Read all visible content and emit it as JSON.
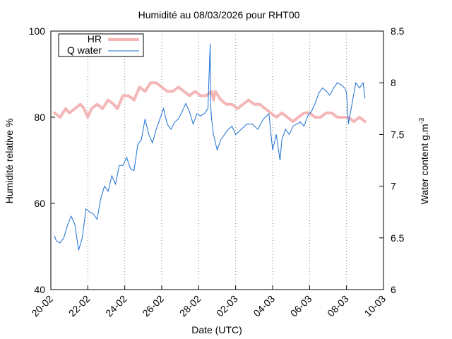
{
  "chart_data": {
    "type": "line",
    "title": "Humidité au 08/03/2026 pour RHT00",
    "xlabel": "Date (UTC)",
    "ylabel_left": "Humidité relative %",
    "ylabel_right": "Water content g.m",
    "ylabel_right_superscript": "-3",
    "x_axis": {
      "unit": "days since 20-02",
      "range": [
        0,
        17
      ],
      "ticks": [
        {
          "value": 0,
          "label": "20-02"
        },
        {
          "value": 2,
          "label": "22-02"
        },
        {
          "value": 4,
          "label": "24-02"
        },
        {
          "value": 6,
          "label": "26-02"
        },
        {
          "value": 8,
          "label": "28-02"
        },
        {
          "value": 10,
          "label": "02-03"
        },
        {
          "value": 12,
          "label": "04-03"
        },
        {
          "value": 14,
          "label": "06-03"
        },
        {
          "value": 16,
          "label": "08-03"
        },
        {
          "value": 18,
          "label": "10-03"
        }
      ]
    },
    "y_left": {
      "range": [
        40,
        100
      ],
      "ticks": [
        40,
        60,
        80,
        100
      ]
    },
    "y_right": {
      "range": [
        6,
        8.5
      ],
      "ticks": [
        "6",
        "6.5",
        "7",
        "7.5",
        "8",
        "8.5"
      ]
    },
    "grid": {
      "vertical_dotted": true,
      "horizontal": false
    },
    "legend": {
      "placement": "top-left",
      "entries": [
        "HR",
        "Q water"
      ]
    },
    "series": [
      {
        "name": "HR",
        "axis": "left",
        "color": "#f4b6b6",
        "x": [
          0.2,
          0.5,
          0.8,
          1.0,
          1.3,
          1.6,
          1.8,
          2.0,
          2.2,
          2.5,
          2.8,
          3.1,
          3.4,
          3.6,
          3.9,
          4.2,
          4.5,
          4.8,
          5.1,
          5.4,
          5.7,
          6.0,
          6.3,
          6.6,
          6.9,
          7.2,
          7.5,
          7.8,
          8.1,
          8.4,
          8.7,
          8.8,
          8.9,
          9.2,
          9.5,
          9.8,
          10.1,
          10.4,
          10.7,
          11.0,
          11.3,
          11.6,
          11.9,
          12.2,
          12.5,
          12.8,
          13.1,
          13.4,
          13.7,
          14.0,
          14.3,
          14.6,
          14.9,
          15.2,
          15.5,
          15.8,
          16.1,
          16.4,
          16.7,
          17.0
        ],
        "y": [
          81,
          80,
          82,
          81,
          82,
          83,
          82,
          80,
          82,
          83,
          82,
          84,
          83,
          82,
          85,
          85,
          84,
          87,
          86,
          88,
          88,
          87,
          86,
          86,
          87,
          86,
          85,
          86,
          85,
          85,
          86,
          84,
          86,
          84,
          83,
          83,
          82,
          83,
          84,
          83,
          83,
          82,
          81,
          80,
          81,
          80,
          79,
          80,
          81,
          81,
          80,
          80,
          81,
          81,
          80,
          80,
          80,
          79,
          80,
          79
        ]
      },
      {
        "name": "Q water",
        "axis": "right",
        "color": "#1a6fd6",
        "x": [
          0.2,
          0.3,
          0.5,
          0.7,
          0.9,
          1.1,
          1.3,
          1.5,
          1.7,
          1.9,
          2.1,
          2.3,
          2.5,
          2.7,
          2.9,
          3.1,
          3.3,
          3.5,
          3.7,
          3.9,
          4.1,
          4.3,
          4.5,
          4.7,
          4.9,
          5.1,
          5.3,
          5.5,
          5.7,
          5.9,
          6.1,
          6.3,
          6.5,
          6.7,
          6.9,
          7.1,
          7.3,
          7.5,
          7.7,
          7.9,
          8.1,
          8.3,
          8.5,
          8.62,
          8.64,
          8.66,
          8.7,
          8.8,
          9.0,
          9.2,
          9.4,
          9.6,
          9.8,
          10.0,
          10.3,
          10.6,
          10.9,
          11.2,
          11.5,
          11.8,
          12.0,
          12.2,
          12.4,
          12.5,
          12.7,
          12.9,
          13.1,
          13.3,
          13.5,
          13.7,
          13.9,
          14.1,
          14.3,
          14.5,
          14.7,
          14.9,
          15.1,
          15.3,
          15.5,
          15.7,
          15.9,
          16.0,
          16.1,
          16.3,
          16.5,
          16.7,
          16.9,
          17.0
        ],
        "y": [
          6.52,
          6.47,
          6.45,
          6.5,
          6.62,
          6.71,
          6.63,
          6.38,
          6.5,
          6.78,
          6.75,
          6.73,
          6.68,
          6.88,
          7.0,
          6.95,
          7.1,
          7.02,
          7.2,
          7.2,
          7.28,
          7.17,
          7.15,
          7.4,
          7.45,
          7.65,
          7.5,
          7.42,
          7.55,
          7.65,
          7.75,
          7.6,
          7.55,
          7.62,
          7.65,
          7.72,
          7.8,
          7.72,
          7.6,
          7.7,
          7.68,
          7.7,
          7.75,
          8.38,
          7.8,
          7.75,
          7.65,
          7.5,
          7.35,
          7.45,
          7.5,
          7.55,
          7.58,
          7.5,
          7.55,
          7.6,
          7.6,
          7.55,
          7.65,
          7.7,
          7.35,
          7.5,
          7.25,
          7.45,
          7.55,
          7.5,
          7.58,
          7.6,
          7.62,
          7.58,
          7.68,
          7.72,
          7.8,
          7.9,
          7.95,
          7.92,
          7.88,
          7.95,
          8.0,
          7.98,
          7.95,
          7.9,
          7.6,
          7.8,
          8.0,
          7.95,
          8.0,
          7.85
        ]
      }
    ]
  }
}
